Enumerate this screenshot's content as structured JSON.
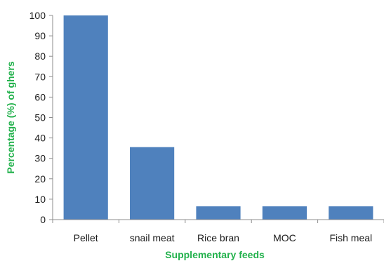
{
  "colors": {
    "bar": "#4f81bd",
    "axis_title": "#22b14c",
    "axis_line": "#8c8c8c"
  },
  "chart_data": {
    "type": "bar",
    "categories": [
      "Pellet",
      "snail meat",
      "Rice bran",
      "MOC",
      "Fish meal"
    ],
    "series": [
      {
        "values": [
          100,
          35.5,
          6.5,
          6.5,
          6.5
        ]
      }
    ],
    "xlabel": "Supplementary feeds",
    "ylabel": "Percentage (%) of ghers",
    "ylim": [
      0,
      100
    ],
    "yticks": [
      "0",
      "10",
      "20",
      "30",
      "40",
      "50",
      "60",
      "70",
      "80",
      "90",
      "100"
    ],
    "grid": false,
    "legend": "none"
  }
}
